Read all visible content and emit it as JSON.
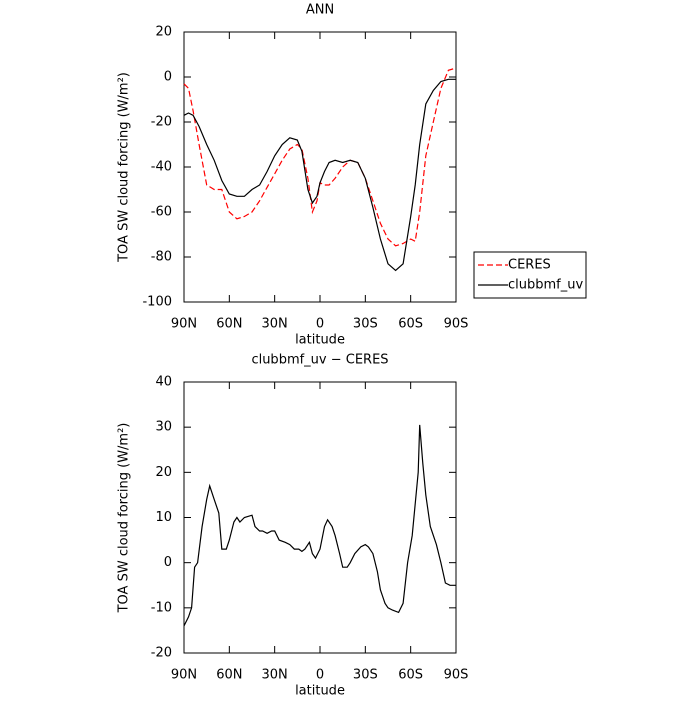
{
  "chart_data": [
    {
      "type": "line",
      "title": "ANN",
      "xlabel": "latitude",
      "ylabel": "TOA SW cloud forcing (W/m²)",
      "x": [
        90,
        87,
        84,
        80,
        75,
        70,
        65,
        60,
        55,
        50,
        45,
        40,
        35,
        30,
        25,
        20,
        15,
        12,
        8,
        5,
        2,
        0,
        -3,
        -6,
        -10,
        -15,
        -20,
        -25,
        -30,
        -35,
        -40,
        -45,
        -50,
        -55,
        -60,
        -63,
        -66,
        -70,
        -75,
        -80,
        -85,
        -90
      ],
      "series": [
        {
          "name": "CERES",
          "color": "#ff0000",
          "linestyle": "dashed",
          "values": [
            -3,
            -5,
            -15,
            -30,
            -48,
            -50,
            -50,
            -60,
            -63,
            -62,
            -60,
            -55,
            -49,
            -43,
            -37,
            -32,
            -30,
            -32,
            -45,
            -60,
            -55,
            -47,
            -48,
            -48,
            -45,
            -40,
            -37,
            -38,
            -45,
            -55,
            -65,
            -72,
            -75,
            -74,
            -72,
            -73,
            -60,
            -35,
            -20,
            -5,
            3,
            4
          ]
        },
        {
          "name": "clubbmf_uv",
          "color": "#000000",
          "linestyle": "solid",
          "values": [
            -17,
            -16,
            -17,
            -22,
            -30,
            -37,
            -46,
            -52,
            -53,
            -53,
            -50,
            -48,
            -42,
            -35,
            -30,
            -27,
            -28,
            -33,
            -50,
            -56,
            -53,
            -47,
            -42,
            -38,
            -37,
            -38,
            -37,
            -38,
            -45,
            -58,
            -72,
            -83,
            -86,
            -83,
            -62,
            -48,
            -30,
            -12,
            -6,
            -2,
            -1,
            -1
          ]
        }
      ],
      "xlim": [
        90,
        -90
      ],
      "xticks": [
        {
          "value": 90,
          "label": "90N"
        },
        {
          "value": 60,
          "label": "60N"
        },
        {
          "value": 30,
          "label": "30N"
        },
        0,
        {
          "value": -30,
          "label": "30S"
        },
        {
          "value": -60,
          "label": "60S"
        },
        {
          "value": -90,
          "label": "90S"
        }
      ],
      "ylim": [
        -100,
        20
      ],
      "yticks": [
        -100,
        -80,
        -60,
        -40,
        -20,
        0,
        20
      ],
      "legend": "right"
    },
    {
      "type": "line",
      "title": "clubbmf_uv − CERES",
      "xlabel": "latitude",
      "ylabel": "TOA SW cloud forcing (W/m²)",
      "x": [
        90,
        87,
        85,
        83,
        81,
        78,
        75,
        73,
        70,
        67,
        65,
        62,
        60,
        57,
        55,
        53,
        50,
        45,
        43,
        40,
        38,
        35,
        32,
        30,
        27,
        23,
        20,
        17,
        14,
        12,
        10,
        7,
        5,
        3,
        0,
        -3,
        -5,
        -8,
        -10,
        -13,
        -15,
        -18,
        -20,
        -23,
        -27,
        -30,
        -32,
        -35,
        -38,
        -40,
        -43,
        -45,
        -48,
        -52,
        -55,
        -58,
        -61,
        -65,
        -66,
        -68,
        -70,
        -73,
        -77,
        -80,
        -83,
        -86,
        -90
      ],
      "color": "#000000",
      "values": [
        -14,
        -12,
        -10,
        -1,
        0,
        8,
        14,
        17,
        14,
        11,
        3,
        3,
        5,
        9,
        10,
        9,
        10,
        10.5,
        8,
        7,
        7,
        6.5,
        7,
        7,
        5,
        4.5,
        4,
        3,
        3,
        2.5,
        3,
        4.5,
        2,
        1,
        3,
        8,
        9.5,
        8,
        6,
        2,
        -1,
        -1,
        0,
        2,
        3.5,
        4,
        3.5,
        2,
        -2,
        -6,
        -9,
        -10,
        -10.5,
        -11,
        -9,
        0,
        6,
        20,
        30.5,
        22,
        15,
        8,
        4,
        0,
        -4.5,
        -5,
        -5
      ],
      "xlim": [
        90,
        -90
      ],
      "xticks": [
        {
          "value": 90,
          "label": "90N"
        },
        {
          "value": 60,
          "label": "60N"
        },
        {
          "value": 30,
          "label": "30N"
        },
        0,
        {
          "value": -30,
          "label": "30S"
        },
        {
          "value": -60,
          "label": "60S"
        },
        {
          "value": -90,
          "label": "90S"
        }
      ],
      "ylim": [
        -20,
        40
      ],
      "yticks": [
        -20,
        -10,
        0,
        10,
        20,
        30,
        40
      ]
    }
  ]
}
